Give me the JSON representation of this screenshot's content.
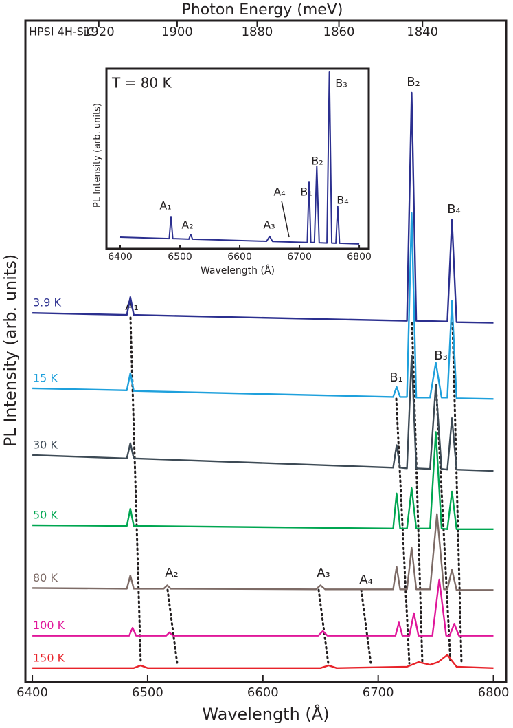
{
  "chart_data": [
    {
      "type": "line",
      "annotation": "HPSI 4H-SiC",
      "xlabel": "Wavelength (Å)",
      "ylabel": "PL Intensity (arb. units)",
      "x2label": "Photon Energy (meV)",
      "xlim": [
        6394,
        6811
      ],
      "xticks": [
        6400,
        6500,
        6600,
        6700,
        6800
      ],
      "x2lim": [
        1939.1,
        1820.4
      ],
      "x2scale": "reciprocal",
      "x2ticks": [
        1920,
        1900,
        1880,
        1860,
        1840
      ],
      "ylim": [
        0,
        100
      ],
      "peak_labels": [
        "A₁",
        "B₂",
        "B₄",
        "B₁",
        "B₃",
        "A₂",
        "A₃",
        "A₄"
      ],
      "series": [
        {
          "name": "3.9 K",
          "color": "#2b2f8f",
          "x": [
            6400,
            6482,
            6485,
            6488,
            6725,
            6729,
            6733,
            6760,
            6764,
            6768,
            6800
          ],
          "values": [
            55.8,
            55.5,
            58.2,
            55.5,
            54.6,
            89.1,
            54.6,
            54.5,
            69.9,
            54.4,
            54.3
          ]
        },
        {
          "name": "15 K",
          "color": "#1ea0dc",
          "x": [
            6400,
            6482,
            6485,
            6488,
            6713,
            6716,
            6719,
            6725,
            6729,
            6733,
            6745,
            6750,
            6755,
            6760,
            6764,
            6768,
            6800
          ],
          "values": [
            44.4,
            44.1,
            46.7,
            44.0,
            43.1,
            44.6,
            43.1,
            43.1,
            70.9,
            43.0,
            43.0,
            48.3,
            43.0,
            43.0,
            57.6,
            42.9,
            42.8
          ]
        },
        {
          "name": "30 K",
          "color": "#3d4a55",
          "x": [
            6400,
            6482,
            6485,
            6488,
            6713,
            6716,
            6719,
            6725,
            6729,
            6733,
            6745,
            6750,
            6755,
            6760,
            6764,
            6768,
            6800
          ],
          "values": [
            34.3,
            33.8,
            36.1,
            33.8,
            32.4,
            35.8,
            32.4,
            32.3,
            49.3,
            32.3,
            32.2,
            44.9,
            32.2,
            32.1,
            39.9,
            32.1,
            31.9
          ]
        },
        {
          "name": "50 K",
          "color": "#00a651",
          "x": [
            6400,
            6482,
            6485,
            6488,
            6713,
            6716,
            6719,
            6725,
            6729,
            6733,
            6745,
            6750,
            6755,
            6760,
            6764,
            6768,
            6800
          ],
          "values": [
            23.7,
            23.6,
            26.2,
            23.6,
            23.2,
            28.5,
            23.2,
            23.2,
            29.3,
            23.2,
            23.2,
            37.8,
            23.2,
            23.1,
            28.8,
            23.1,
            23.1
          ]
        },
        {
          "name": "80 K",
          "color": "#7d6b66",
          "x": [
            6400,
            6482,
            6485,
            6488,
            6514,
            6517,
            6520,
            6646,
            6650,
            6654,
            6713,
            6716,
            6719,
            6725,
            6729,
            6733,
            6745,
            6751,
            6757,
            6760,
            6764,
            6768,
            6800
          ],
          "values": [
            14.2,
            14.1,
            16.1,
            14.1,
            14.1,
            14.6,
            14.1,
            14.0,
            14.6,
            14.0,
            14.0,
            17.4,
            14.0,
            14.0,
            20.3,
            14.0,
            14.0,
            25.4,
            14.0,
            14.0,
            17.0,
            13.9,
            13.9
          ]
        },
        {
          "name": "100 K",
          "color": "#e0179a",
          "x": [
            6400,
            6484,
            6487,
            6490,
            6516,
            6519,
            6522,
            6648,
            6652,
            6656,
            6715,
            6718,
            6721,
            6727,
            6731,
            6735,
            6747,
            6753,
            6759,
            6762,
            6766,
            6770,
            6800
          ],
          "values": [
            7.0,
            7.0,
            8.2,
            7.0,
            7.0,
            7.5,
            7.0,
            7.0,
            7.7,
            7.0,
            7.0,
            9.0,
            7.0,
            7.0,
            10.4,
            7.0,
            7.0,
            15.5,
            7.0,
            7.0,
            8.8,
            7.0,
            7.0
          ]
        },
        {
          "name": "150 K",
          "color": "#e8232a",
          "x": [
            6400,
            6488,
            6494,
            6500,
            6650,
            6657,
            6664,
            6725,
            6735,
            6745,
            6752,
            6760,
            6768,
            6800
          ],
          "values": [
            2.1,
            2.1,
            2.5,
            2.1,
            2.1,
            2.5,
            2.1,
            2.3,
            3.0,
            2.6,
            3.0,
            4.1,
            2.3,
            2.1
          ]
        }
      ]
    },
    {
      "type": "line",
      "annotation": "T = 80 K",
      "xlabel": "Wavelength (Å)",
      "ylabel": "PL Intensity (arb. units)",
      "xlim": [
        6377,
        6816
      ],
      "xticks": [
        6400,
        6500,
        6600,
        6700,
        6800
      ],
      "ylim": [
        0,
        100
      ],
      "peak_labels": [
        "A₁",
        "A₂",
        "A₃",
        "A₄",
        "B₁",
        "B₂",
        "B₃",
        "B₄"
      ],
      "series": [
        {
          "color": "#2b2f8f",
          "x": [
            6400,
            6482,
            6485,
            6488,
            6515,
            6518,
            6521,
            6645,
            6650,
            6655,
            6713,
            6716,
            6719,
            6725,
            6729,
            6733,
            6746,
            6750,
            6754,
            6761,
            6764,
            6767,
            6800
          ],
          "values": [
            6.5,
            5.7,
            17.9,
            5.7,
            5.4,
            8.0,
            5.4,
            4.2,
            6.9,
            4.1,
            3.5,
            37.0,
            3.5,
            3.5,
            45.8,
            3.4,
            3.2,
            98.1,
            3.2,
            3.1,
            23.7,
            3.1,
            2.7
          ]
        }
      ]
    }
  ]
}
